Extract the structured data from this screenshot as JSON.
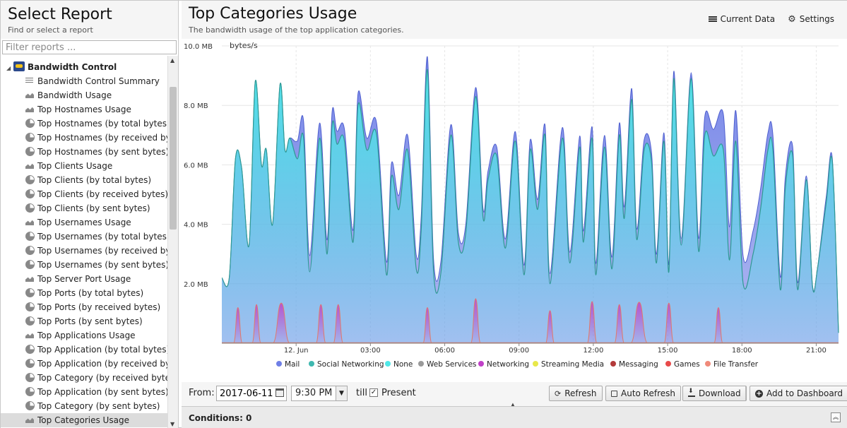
{
  "sidebar": {
    "title": "Select Report",
    "subtitle": "Find or select a report",
    "filter_placeholder": "Filter reports ...",
    "group": "Bandwidth Control",
    "items": [
      {
        "label": "Bandwidth Control Summary",
        "icon": "list-icon"
      },
      {
        "label": "Bandwidth Usage",
        "icon": "area-chart-icon"
      },
      {
        "label": "Top Hostnames Usage",
        "icon": "area-chart-icon"
      },
      {
        "label": "Top Hostnames (by total bytes)",
        "icon": "pie-chart-icon"
      },
      {
        "label": "Top Hostnames (by received byte...",
        "icon": "pie-chart-icon"
      },
      {
        "label": "Top Hostnames (by sent bytes)",
        "icon": "pie-chart-icon"
      },
      {
        "label": "Top Clients Usage",
        "icon": "area-chart-icon"
      },
      {
        "label": "Top Clients (by total bytes)",
        "icon": "pie-chart-icon"
      },
      {
        "label": "Top Clients (by received bytes)",
        "icon": "pie-chart-icon"
      },
      {
        "label": "Top Clients (by sent bytes)",
        "icon": "pie-chart-icon"
      },
      {
        "label": "Top Usernames Usage",
        "icon": "area-chart-icon"
      },
      {
        "label": "Top Usernames (by total bytes)",
        "icon": "pie-chart-icon"
      },
      {
        "label": "Top Usernames (by received bytes)",
        "icon": "pie-chart-icon"
      },
      {
        "label": "Top Usernames (by sent bytes)",
        "icon": "pie-chart-icon"
      },
      {
        "label": "Top Server Port Usage",
        "icon": "area-chart-icon"
      },
      {
        "label": "Top Ports (by total bytes)",
        "icon": "pie-chart-icon"
      },
      {
        "label": "Top Ports (by received bytes)",
        "icon": "pie-chart-icon"
      },
      {
        "label": "Top Ports (by sent bytes)",
        "icon": "pie-chart-icon"
      },
      {
        "label": "Top Applications Usage",
        "icon": "area-chart-icon"
      },
      {
        "label": "Top Application (by total bytes)",
        "icon": "pie-chart-icon"
      },
      {
        "label": "Top Application (by received bytes)",
        "icon": "pie-chart-icon"
      },
      {
        "label": "Top Category (by received bytes)",
        "icon": "pie-chart-icon"
      },
      {
        "label": "Top Application (by sent bytes)",
        "icon": "pie-chart-icon"
      },
      {
        "label": "Top Category (by sent bytes)",
        "icon": "pie-chart-icon"
      },
      {
        "label": "Top Categories Usage",
        "icon": "area-chart-icon",
        "selected": true
      }
    ]
  },
  "report": {
    "title": "Top Categories Usage",
    "subtitle": "The bandwidth usage of the top application categories.",
    "current_data_label": "Current Data",
    "settings_label": "Settings"
  },
  "controls": {
    "from_label": "From:",
    "date_value": "2017-06-11",
    "time_value": "9:30 PM",
    "till_label": "till",
    "present_label": "Present",
    "present_checked": true,
    "refresh_label": "Refresh",
    "auto_refresh_label": "Auto Refresh",
    "download_label": "Download",
    "add_dashboard_label": "Add to Dashboard"
  },
  "conditions": {
    "label": "Conditions: 0"
  },
  "chart_data": {
    "type": "area",
    "ylabel": "bytes/s",
    "yticks": [
      "2.0 MB",
      "4.0 MB",
      "6.0 MB",
      "8.0 MB",
      "10.0 MB"
    ],
    "ylim": [
      0,
      10
    ],
    "y_unit": "MB",
    "xlim": [
      -3,
      21.9
    ],
    "xticks": [
      {
        "label": "12. Jun",
        "v": 0
      },
      {
        "label": "03:00",
        "v": 3
      },
      {
        "label": "06:00",
        "v": 6
      },
      {
        "label": "09:00",
        "v": 9
      },
      {
        "label": "12:00",
        "v": 12
      },
      {
        "label": "15:00",
        "v": 15
      },
      {
        "label": "18:00",
        "v": 18
      },
      {
        "label": "21:00",
        "v": 21
      }
    ],
    "grid": true,
    "legend_position": "bottom",
    "series_colors": {
      "Mail": "#6f7fe6",
      "Social Networking": "#3fb8b0",
      "None": "#4fe8e8",
      "Web Services": "#9a9a9a",
      "Networking": "#c040c8",
      "Streaming Media": "#e8e84a",
      "Messaging": "#b33a3a",
      "Games": "#e84a4a",
      "File Transfer": "#f08a7a"
    },
    "series": [
      {
        "name": "Mail",
        "color": "#6f7fe6"
      },
      {
        "name": "Social Networking",
        "color": "#3fb8b0"
      },
      {
        "name": "None",
        "color": "#4fe8e8"
      },
      {
        "name": "Web Services",
        "color": "#9a9a9a"
      },
      {
        "name": "Networking",
        "color": "#c040c8"
      },
      {
        "name": "Streaming Media",
        "color": "#e8e84a"
      },
      {
        "name": "Messaging",
        "color": "#b33a3a"
      },
      {
        "name": "Games",
        "color": "#e84a4a"
      },
      {
        "name": "File Transfer",
        "color": "#f08a7a"
      }
    ],
    "none_points": [
      [
        -3.0,
        2.2
      ],
      [
        -2.7,
        2.2
      ],
      [
        -2.45,
        6.2
      ],
      [
        -2.2,
        5.9
      ],
      [
        -1.9,
        3.3
      ],
      [
        -1.65,
        8.8
      ],
      [
        -1.4,
        6.0
      ],
      [
        -1.2,
        6.5
      ],
      [
        -0.95,
        4.0
      ],
      [
        -0.65,
        8.7
      ],
      [
        -0.45,
        6.5
      ],
      [
        -0.25,
        6.9
      ],
      [
        0.05,
        6.2
      ],
      [
        0.3,
        6.9
      ],
      [
        0.55,
        2.4
      ],
      [
        0.95,
        6.9
      ],
      [
        1.25,
        3.0
      ],
      [
        1.45,
        7.3
      ],
      [
        1.65,
        6.7
      ],
      [
        1.95,
        6.8
      ],
      [
        2.3,
        3.4
      ],
      [
        2.5,
        8.0
      ],
      [
        2.85,
        6.5
      ],
      [
        3.25,
        7.0
      ],
      [
        3.65,
        2.3
      ],
      [
        3.85,
        5.6
      ],
      [
        4.15,
        4.5
      ],
      [
        4.5,
        6.5
      ],
      [
        4.85,
        2.5
      ],
      [
        5.05,
        3.8
      ],
      [
        5.3,
        9.2
      ],
      [
        5.55,
        2.4
      ],
      [
        5.85,
        2.4
      ],
      [
        6.25,
        7.0
      ],
      [
        6.55,
        3.4
      ],
      [
        6.85,
        3.7
      ],
      [
        7.25,
        8.3
      ],
      [
        7.55,
        4.2
      ],
      [
        7.75,
        5.5
      ],
      [
        8.1,
        6.3
      ],
      [
        8.45,
        3.2
      ],
      [
        8.85,
        6.8
      ],
      [
        9.2,
        2.3
      ],
      [
        9.45,
        6.5
      ],
      [
        9.75,
        4.5
      ],
      [
        10.05,
        7.0
      ],
      [
        10.25,
        2.0
      ],
      [
        10.75,
        6.9
      ],
      [
        11.05,
        2.7
      ],
      [
        11.45,
        6.6
      ],
      [
        11.6,
        3.4
      ],
      [
        11.95,
        6.9
      ],
      [
        12.1,
        2.3
      ],
      [
        12.45,
        6.6
      ],
      [
        12.75,
        2.5
      ],
      [
        13.05,
        7.0
      ],
      [
        13.25,
        4.2
      ],
      [
        13.55,
        8.2
      ],
      [
        13.75,
        3.5
      ],
      [
        14.05,
        6.5
      ],
      [
        14.35,
        6.1
      ],
      [
        14.55,
        2.7
      ],
      [
        14.85,
        6.8
      ],
      [
        15.05,
        2.4
      ],
      [
        15.25,
        8.9
      ],
      [
        15.55,
        3.3
      ],
      [
        15.95,
        8.9
      ],
      [
        16.25,
        3.1
      ],
      [
        16.5,
        7.0
      ],
      [
        16.85,
        6.3
      ],
      [
        17.25,
        6.5
      ],
      [
        17.5,
        2.8
      ],
      [
        17.75,
        6.8
      ],
      [
        18.05,
        2.0
      ],
      [
        18.45,
        3.0
      ],
      [
        18.75,
        4.5
      ],
      [
        19.05,
        6.5
      ],
      [
        19.25,
        6.5
      ],
      [
        19.55,
        1.8
      ],
      [
        19.75,
        5.2
      ],
      [
        20.05,
        6.3
      ],
      [
        20.25,
        1.8
      ],
      [
        20.6,
        5.5
      ],
      [
        20.85,
        1.9
      ],
      [
        21.05,
        2.5
      ],
      [
        21.4,
        4.7
      ],
      [
        21.65,
        6.1
      ],
      [
        21.9,
        0.35
      ]
    ],
    "mail_extra": [
      [
        0.0,
        0.0
      ],
      [
        0.05,
        0.6
      ],
      [
        1.95,
        0.4
      ],
      [
        3.25,
        0.4
      ],
      [
        4.5,
        0.5
      ],
      [
        6.85,
        0.3
      ],
      [
        8.1,
        0.3
      ],
      [
        13.05,
        0.4
      ],
      [
        15.95,
        0.2
      ],
      [
        17.25,
        1.2
      ],
      [
        19.25,
        0.5
      ],
      [
        20.05,
        0.3
      ],
      [
        21.0,
        0.0
      ],
      [
        21.4,
        0.2
      ],
      [
        21.9,
        0.0
      ]
    ],
    "networking_spikes": [
      {
        "x": -2.35,
        "peak": 1.2,
        "w": 0.18
      },
      {
        "x": -1.6,
        "peak": 1.3,
        "w": 0.18
      },
      {
        "x": -0.6,
        "peak": 1.35,
        "w": 0.35
      },
      {
        "x": 1.0,
        "peak": 1.3,
        "w": 0.2
      },
      {
        "x": 1.7,
        "peak": 1.3,
        "w": 0.2
      },
      {
        "x": 5.3,
        "peak": 1.2,
        "w": 0.18
      },
      {
        "x": 7.25,
        "peak": 1.5,
        "w": 0.2
      },
      {
        "x": 10.25,
        "peak": 1.1,
        "w": 0.18
      },
      {
        "x": 11.95,
        "peak": 1.4,
        "w": 0.2
      },
      {
        "x": 13.05,
        "peak": 1.3,
        "w": 0.2
      },
      {
        "x": 13.85,
        "peak": 1.38,
        "w": 0.35
      },
      {
        "x": 15.05,
        "peak": 1.35,
        "w": 0.2
      },
      {
        "x": 17.05,
        "peak": 1.2,
        "w": 0.18
      }
    ]
  }
}
